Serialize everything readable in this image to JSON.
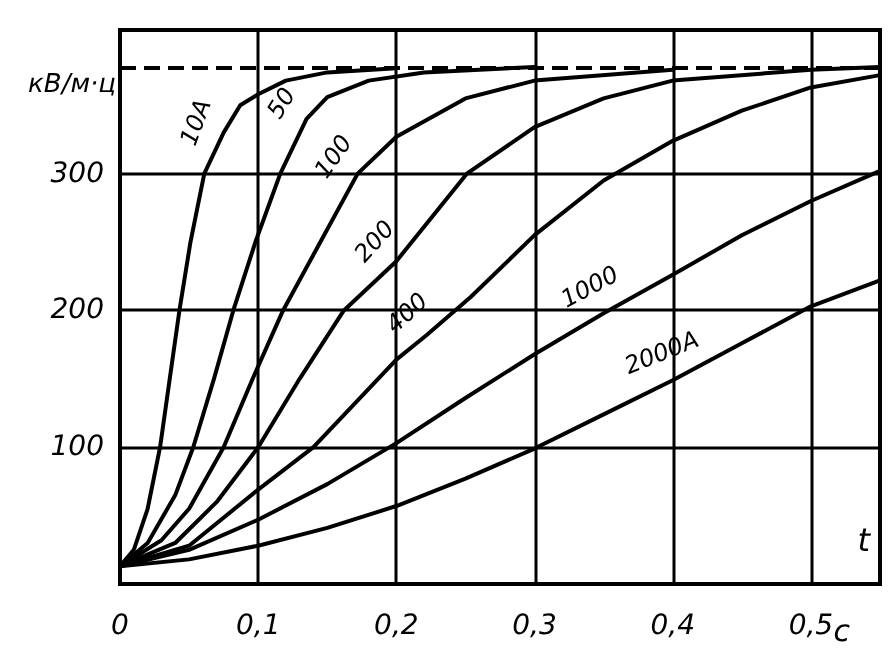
{
  "chart_data": {
    "type": "line",
    "ylabel": "кВ/м·ц",
    "xlabel": "t",
    "annotations": [
      "с"
    ],
    "xlim": [
      0,
      0.55
    ],
    "ylim": [
      0,
      405
    ],
    "xticks": [
      {
        "value": 0,
        "label": "0"
      },
      {
        "value": 0.1,
        "label": "0,1"
      },
      {
        "value": 0.2,
        "label": "0,2"
      },
      {
        "value": 0.3,
        "label": "0,3"
      },
      {
        "value": 0.4,
        "label": "0,4"
      },
      {
        "value": 0.5,
        "label": "0,5"
      }
    ],
    "yticks": [
      100,
      200,
      300
    ],
    "grid": true,
    "marker": "none",
    "line_style": "solid",
    "ref_lines": [
      {
        "axis": "y",
        "value": 378,
        "line_style": "dashed",
        "color": "#000000"
      }
    ],
    "series": [
      {
        "name": "10A",
        "color": "#000000",
        "x": [
          0,
          0.01,
          0.02,
          0.029,
          0.036,
          0.043,
          0.051,
          0.061,
          0.075,
          0.087,
          0.1,
          0.12,
          0.15,
          0.2
        ],
        "values": [
          13,
          25,
          55,
          100,
          150,
          200,
          250,
          300,
          330,
          350,
          358,
          368,
          374,
          377
        ]
      },
      {
        "name": "50",
        "color": "#000000",
        "x": [
          0,
          0.02,
          0.04,
          0.053,
          0.068,
          0.082,
          0.098,
          0.116,
          0.135,
          0.15,
          0.18,
          0.22,
          0.3
        ],
        "values": [
          13,
          30,
          65,
          100,
          150,
          200,
          250,
          300,
          340,
          356,
          368,
          374,
          378
        ]
      },
      {
        "name": "100",
        "color": "#000000",
        "x": [
          0,
          0.03,
          0.05,
          0.075,
          0.096,
          0.118,
          0.145,
          0.172,
          0.2,
          0.25,
          0.3,
          0.4
        ],
        "values": [
          13,
          32,
          55,
          100,
          150,
          200,
          250,
          300,
          327,
          355,
          368,
          376
        ]
      },
      {
        "name": "200",
        "color": "#000000",
        "x": [
          0,
          0.04,
          0.07,
          0.1,
          0.13,
          0.162,
          0.2,
          0.251,
          0.3,
          0.35,
          0.4,
          0.5,
          0.55
        ],
        "values": [
          13,
          30,
          60,
          100,
          150,
          200,
          236,
          300,
          334,
          355,
          368,
          376,
          378
        ]
      },
      {
        "name": "400",
        "color": "#000000",
        "x": [
          0,
          0.05,
          0.1,
          0.14,
          0.2,
          0.222,
          0.254,
          0.3,
          0.35,
          0.4,
          0.45,
          0.5,
          0.55
        ],
        "values": [
          13,
          28,
          69,
          100,
          164,
          182,
          210,
          255,
          295,
          324,
          346,
          363,
          372
        ]
      },
      {
        "name": "1000",
        "color": "#000000",
        "x": [
          0,
          0.05,
          0.1,
          0.15,
          0.2,
          0.25,
          0.3,
          0.35,
          0.4,
          0.45,
          0.5,
          0.55
        ],
        "values": [
          13,
          25,
          47,
          73,
          103,
          136,
          168,
          198,
          226,
          255,
          280,
          302
        ]
      },
      {
        "name": "2000A",
        "color": "#000000",
        "x": [
          0,
          0.05,
          0.1,
          0.15,
          0.2,
          0.25,
          0.3,
          0.35,
          0.4,
          0.45,
          0.5,
          0.55
        ],
        "values": [
          13,
          18,
          28,
          41,
          57,
          77,
          99,
          124,
          149,
          176,
          203,
          222
        ]
      }
    ]
  }
}
